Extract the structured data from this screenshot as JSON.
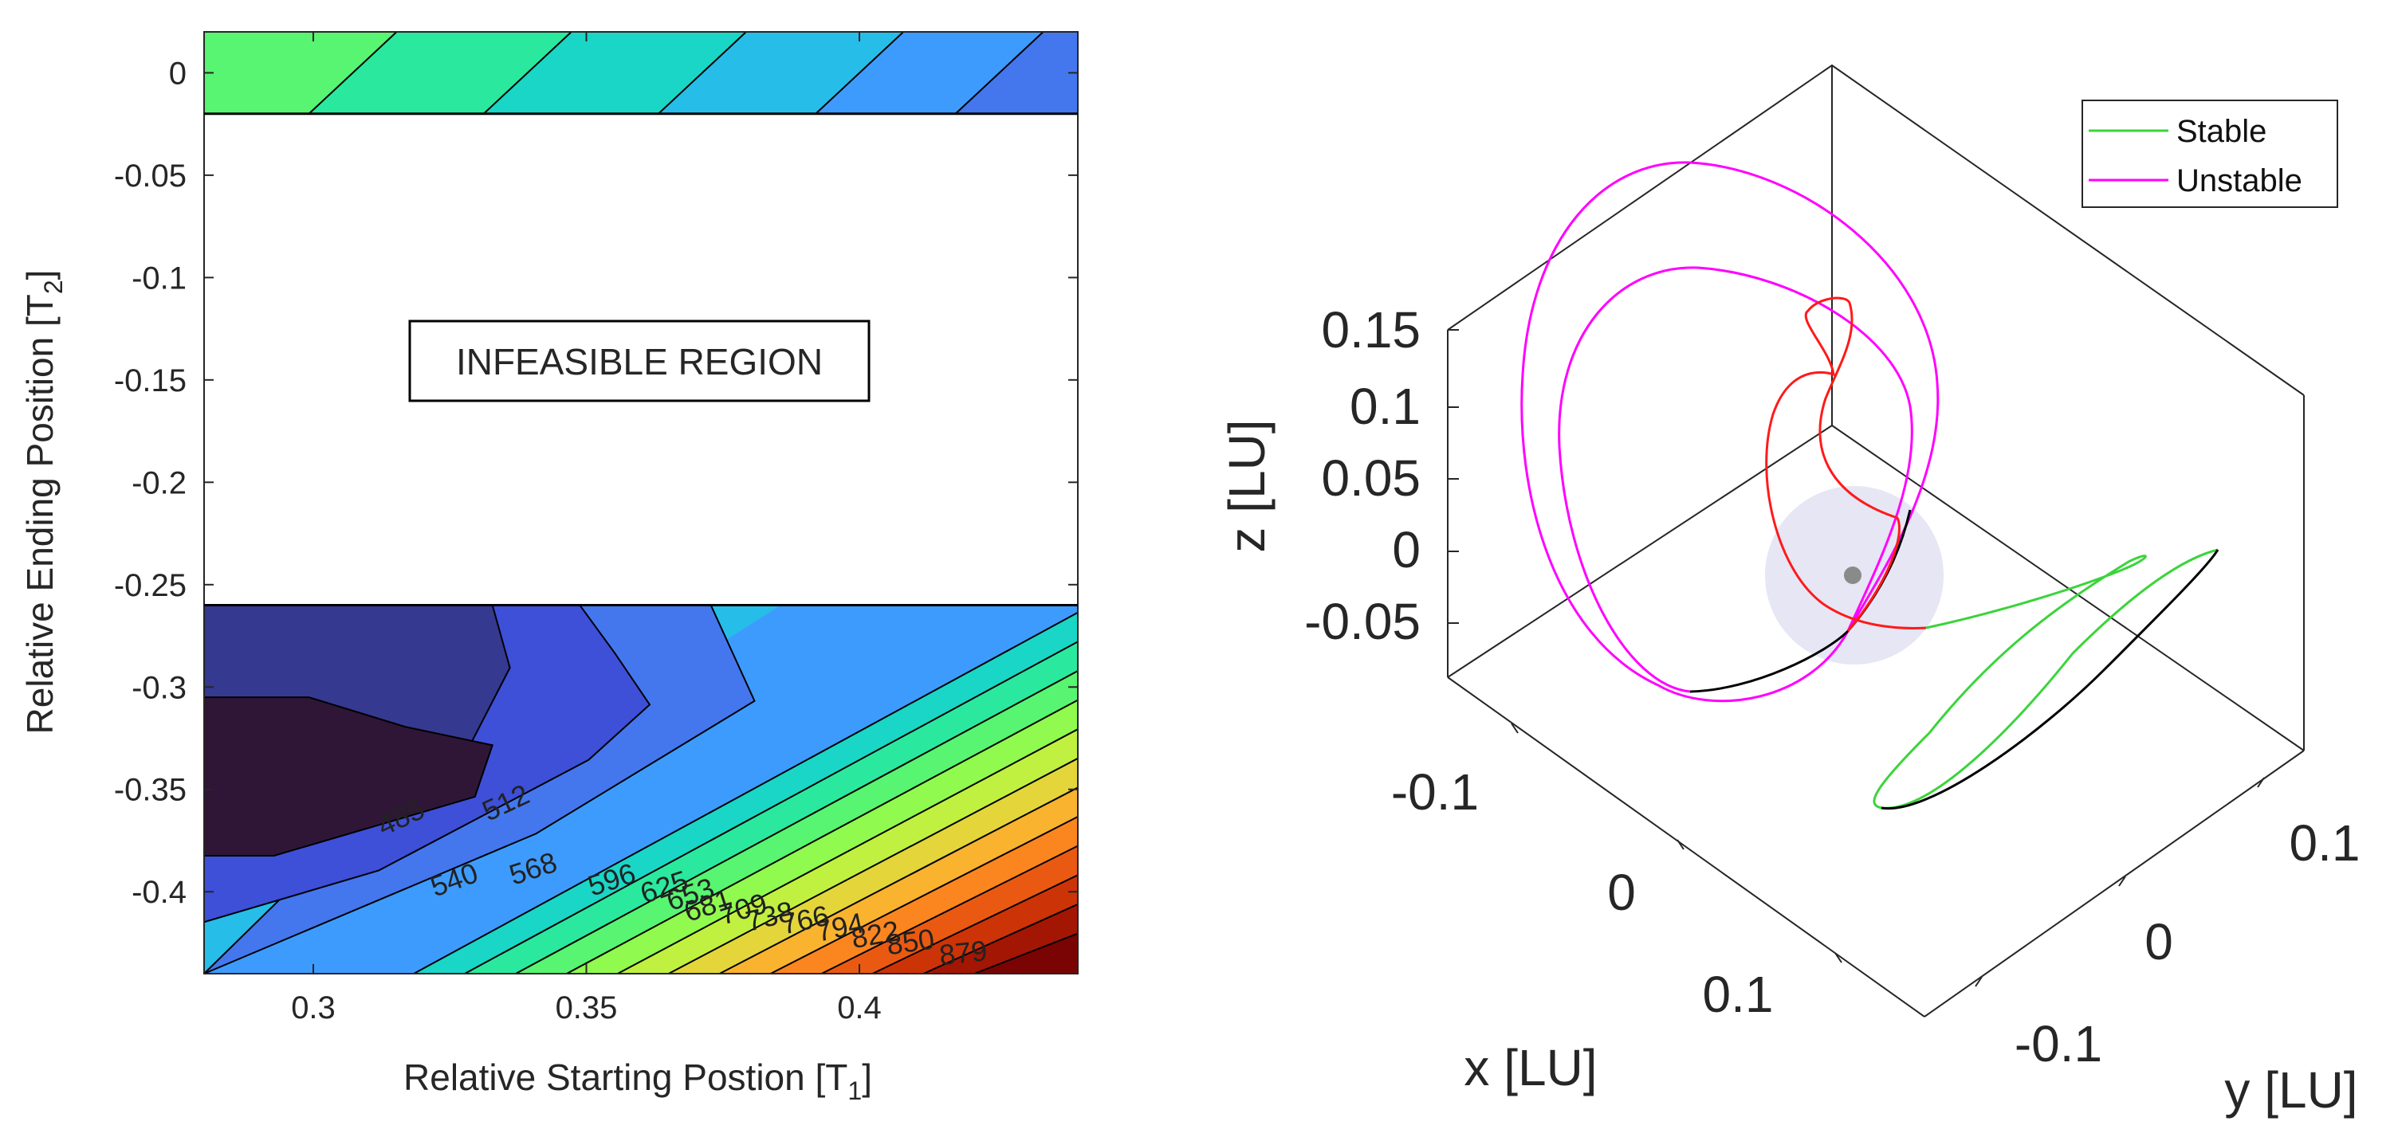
{
  "chart_data": [
    {
      "type": "contour",
      "xlabel": "Relative Starting Postion [T",
      "xlabel_sub": "1",
      "xlabel_end": "]",
      "ylabel": "Relative Ending Position [T",
      "ylabel_sub": "2",
      "ylabel_end": "]",
      "xlim": [
        0.28,
        0.44
      ],
      "ylim": [
        -0.44,
        0.02
      ],
      "x_ticks": [
        0.3,
        0.35,
        0.4
      ],
      "x_tick_labels": [
        "0.3",
        "0.35",
        "0.4"
      ],
      "y_ticks": [
        0,
        -0.05,
        -0.1,
        -0.15,
        -0.2,
        -0.25,
        -0.3,
        -0.35,
        -0.4
      ],
      "y_tick_labels": [
        "0",
        "-0.05",
        "-0.1",
        "-0.15",
        "-0.2",
        "-0.25",
        "-0.3",
        "-0.35",
        "-0.4"
      ],
      "infeasible_region": {
        "label": "INFEASIBLE REGION",
        "y_range": [
          -0.26,
          -0.02
        ]
      },
      "contour_levels": [
        485,
        512,
        540,
        568,
        596,
        625,
        653,
        681,
        709,
        738,
        766,
        794,
        822,
        850,
        879
      ],
      "contour_labels": [
        "485",
        "512",
        "540",
        "568",
        "596",
        "625",
        "653",
        "681",
        "709",
        "738",
        "766",
        "794",
        "822",
        "850",
        "879"
      ],
      "colormap": [
        "#2f1637",
        "#35398f",
        "#3e4fd8",
        "#4477ee",
        "#3e9bfe",
        "#27bde9",
        "#1ad6c6",
        "#2ae99e",
        "#57f571",
        "#90fa4f",
        "#c0f140",
        "#e4d63a",
        "#f9b32f",
        "#fb861f",
        "#ea5911",
        "#cc3306",
        "#a31603",
        "#7a0403"
      ]
    },
    {
      "type": "line3d",
      "xlabel": "x [LU]",
      "ylabel": "y [LU]",
      "zlabel": "z [LU]",
      "x_tick_labels": [
        "-0.1",
        "0",
        "0.1"
      ],
      "y_tick_labels": [
        "-0.1",
        "0",
        "0.1"
      ],
      "z_tick_labels": [
        "0.15",
        "0.1",
        "0.05",
        "0",
        "-0.05"
      ],
      "z_ticks": [
        0.15,
        0.1,
        0.05,
        0,
        -0.05
      ],
      "legend": {
        "position": "top-right"
      },
      "series": [
        {
          "name": "Stable",
          "color": "#3ad43a"
        },
        {
          "name": "Unstable",
          "color": "#ff00ff"
        },
        {
          "name": "",
          "color": "#ff1a1a"
        },
        {
          "name": "",
          "color": "#000000"
        }
      ],
      "moon": {
        "sphere_color": "#dedef0",
        "body_color": "#8a8a8a"
      }
    }
  ]
}
